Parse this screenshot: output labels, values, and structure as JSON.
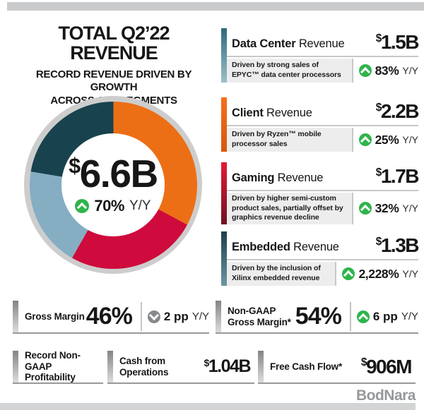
{
  "header": {
    "title": "TOTAL Q2’22 REVENUE",
    "subtitle_line1": "RECORD REVENUE DRIVEN BY GROWTH",
    "subtitle_line2": "ACROSS ALL SEGMENTS"
  },
  "chart_data": {
    "type": "pie",
    "donut": true,
    "title": "TOTAL Q2’22 REVENUE",
    "units": "USD billions",
    "start": "12 o'clock, clockwise",
    "center": {
      "currency": "$",
      "value": "6.6B",
      "change": "70%",
      "yoy_label": "Y/Y",
      "direction": "up"
    },
    "segments": [
      {
        "label": "Client",
        "value_b": 2.2,
        "color": "#EC6F16"
      },
      {
        "label": "Gaming",
        "value_b": 1.7,
        "color": "#CF0A3C"
      },
      {
        "label": "Embedded",
        "value_b": 1.3,
        "color": "#85AEC3"
      },
      {
        "label": "Data Center",
        "value_b": 1.5,
        "color": "#17424E"
      }
    ],
    "ring_color": "#CDCDCD"
  },
  "cards": [
    {
      "name": "Data Center",
      "suffix": "Revenue",
      "currency": "$",
      "value": "1.5B",
      "desc": "Driven by strong sales of EPYC™ data center processors",
      "change": "83%",
      "yoy": "Y/Y",
      "direction": "up",
      "accent_top": "#2B6B7B",
      "accent_bottom": "#9CC0C9"
    },
    {
      "name": "Client",
      "suffix": "Revenue",
      "currency": "$",
      "value": "2.2B",
      "desc": "Driven by Ryzen™ mobile processor sales",
      "change": "25%",
      "yoy": "Y/Y",
      "direction": "up",
      "accent_top": "#F4701D",
      "accent_bottom": "#D4570E"
    },
    {
      "name": "Gaming",
      "suffix": "Revenue",
      "currency": "$",
      "value": "1.7B",
      "desc": "Driven by higher semi-custom product sales, partially offset by graphics revenue decline",
      "change": "32%",
      "yoy": "Y/Y",
      "direction": "up",
      "accent_top": "#E51837",
      "accent_bottom": "#6E1220"
    },
    {
      "name": "Embedded",
      "suffix": "Revenue",
      "currency": "$",
      "value": "1.3B",
      "desc": "Driven by the inclusion of Xilinx embedded revenue",
      "change": "2,228%",
      "yoy": "Y/Y",
      "direction": "up",
      "accent_top": "#1D3E4C",
      "accent_bottom": "#6F95A3"
    }
  ],
  "metrics": {
    "gross_margin": {
      "label": "Gross Margin",
      "value": "46%",
      "change": "2 pp",
      "yoy": "Y/Y",
      "direction": "down"
    },
    "non_gaap_gross_margin": {
      "label": "Non-GAAP Gross Margin*",
      "value": "54%",
      "change": "6 pp",
      "yoy": "Y/Y",
      "direction": "up"
    },
    "profitability": {
      "label": "Record Non-GAAP Profitability"
    },
    "cash_from_operations": {
      "label": "Cash from Operations",
      "currency": "$",
      "value": "1.04B"
    },
    "free_cash_flow": {
      "label": "Free Cash Flow*",
      "currency": "$",
      "value": "906M"
    }
  },
  "footer": {
    "logo": "BodNara"
  },
  "colors": {
    "up_green": "#2FB44B",
    "down_gray": "#85898C",
    "desc_bg": "#EDEDEE",
    "divider": "#C3C5C7",
    "underline": "#98999B",
    "frame_bar": "#C9CACB"
  }
}
